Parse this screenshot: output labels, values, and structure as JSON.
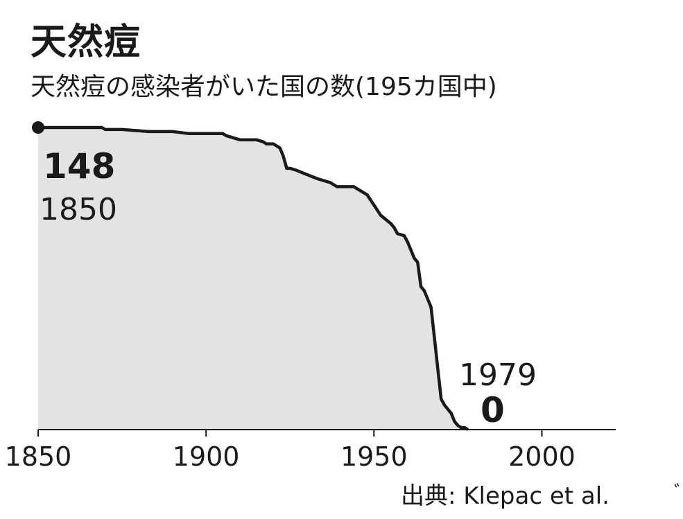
{
  "title": "天然痘",
  "subtitle": "天然痘の感染者がいた国の数(195カ国中)",
  "source": "出典: Klepac et al.",
  "colors": {
    "line": "#1a1a1a",
    "area": "#e3e3e3",
    "axis": "#1a1a1a"
  },
  "chart_data": {
    "type": "area",
    "title": "天然痘",
    "subtitle": "天然痘の感染者がいた国の数(195カ国中)",
    "xlabel": "",
    "ylabel": "",
    "xlim": [
      1850,
      2022
    ],
    "ylim": [
      0,
      148
    ],
    "grid": false,
    "x_ticks": [
      1850,
      1900,
      1950,
      2000
    ],
    "annotations": [
      {
        "x": 1850,
        "y": 148,
        "value_label": "148",
        "year_label": "1850"
      },
      {
        "x": 1979,
        "y": 0,
        "value_label": "0",
        "year_label": "1979"
      }
    ],
    "series": [
      {
        "x": [
          1850,
          1855,
          1860,
          1869,
          1870,
          1875,
          1883,
          1890,
          1895,
          1896,
          1905,
          1906,
          1908,
          1910,
          1911,
          1915,
          1917,
          1918,
          1920,
          1921,
          1922,
          1923,
          1924,
          1925,
          1927,
          1930,
          1933,
          1935,
          1937,
          1939,
          1941,
          1944,
          1946,
          1948,
          1950,
          1952,
          1955,
          1956,
          1957,
          1959,
          1960,
          1961,
          1962,
          1963,
          1964,
          1965,
          1967,
          1968,
          1969,
          1970,
          1971,
          1972,
          1973,
          1974,
          1975,
          1976,
          1977,
          1978
        ],
        "y": [
          148,
          148,
          148,
          148,
          147,
          147,
          146,
          146,
          145,
          145,
          145,
          144,
          143,
          142,
          142,
          142,
          141,
          140,
          140,
          139,
          138,
          134,
          128,
          128,
          127,
          125,
          123,
          122,
          121,
          119,
          119,
          119,
          117,
          115,
          110,
          105,
          101,
          99,
          96,
          95,
          92,
          88,
          84,
          82,
          70,
          68,
          60,
          45,
          30,
          15,
          12,
          10,
          8,
          4,
          2,
          1,
          1,
          0
        ]
      }
    ]
  }
}
